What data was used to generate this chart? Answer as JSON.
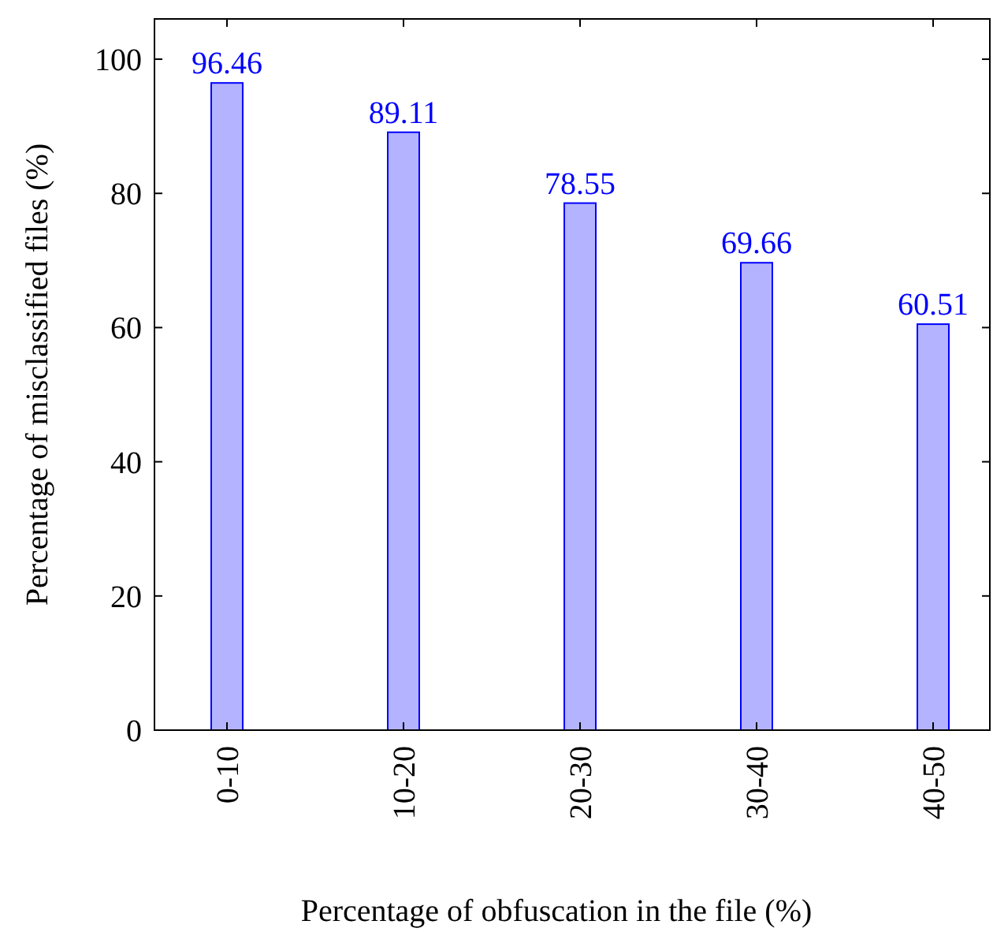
{
  "chart_data": {
    "type": "bar",
    "categories": [
      "0-10",
      "10-20",
      "20-30",
      "30-40",
      "40-50"
    ],
    "values": [
      96.46,
      89.11,
      78.55,
      69.66,
      60.51
    ],
    "color": "#b3b3ff",
    "xlabel": "Percentage of obfuscation in the file (%)",
    "ylabel": "Percentage of misclassified files (%)",
    "ylim": [
      0,
      106
    ],
    "yticks": [
      0,
      20,
      40,
      60,
      80,
      100
    ],
    "data_labels": true,
    "grid": false
  }
}
